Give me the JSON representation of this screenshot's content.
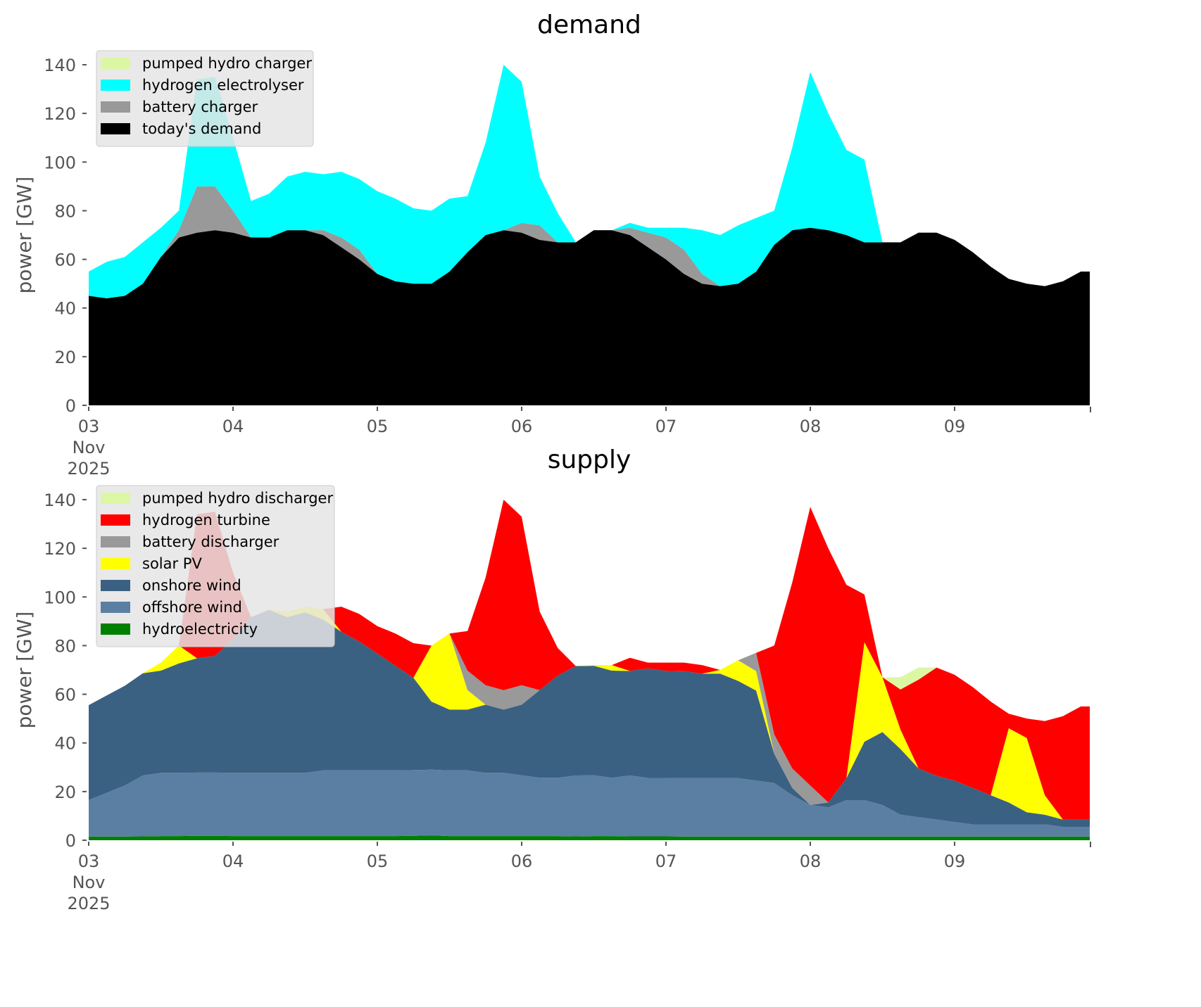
{
  "chart_data": [
    {
      "type": "area",
      "stacked": true,
      "title": "demand",
      "xlabel": "",
      "ylabel": "power [GW]",
      "ylim": [
        0,
        145
      ],
      "yticks": [
        0,
        20,
        40,
        60,
        80,
        100,
        120,
        140
      ],
      "xticks": [
        "03\nNov\n2025",
        "04",
        "05",
        "06",
        "07",
        "08",
        "09"
      ],
      "xtick_lines": [
        [
          "03",
          "Nov",
          "2025"
        ],
        [
          "04"
        ],
        [
          "05"
        ],
        [
          "06"
        ],
        [
          "07"
        ],
        [
          "08"
        ],
        [
          "09"
        ]
      ],
      "x_unit": "days since 03 Nov 2025 00:00",
      "x_step_days": 0.125,
      "x_range_days": [
        0,
        6.94
      ],
      "legend_position": "top-left",
      "grid": false,
      "series": [
        {
          "name": "today's demand",
          "color": "#000000",
          "values": [
            45,
            44,
            45,
            50,
            61,
            69,
            71,
            72,
            71,
            69,
            69,
            72,
            72,
            70,
            65,
            60,
            54,
            51,
            50,
            50,
            55,
            63,
            70,
            72,
            71,
            68,
            67,
            67,
            72,
            72,
            70,
            65,
            60,
            54,
            50,
            49,
            50,
            55,
            66,
            72,
            73,
            72,
            70,
            67,
            67,
            67,
            71,
            71,
            68,
            63,
            57,
            52,
            50,
            49,
            51,
            55
          ]
        },
        {
          "name": "battery charger",
          "color": "#999999",
          "values": [
            0,
            0,
            0,
            0,
            0,
            3,
            19,
            18,
            9,
            0,
            0,
            0,
            0,
            2,
            4,
            4,
            0,
            0,
            0,
            0,
            0,
            0,
            0,
            0,
            4,
            6,
            0,
            0,
            0,
            0,
            3,
            6,
            9,
            10,
            4,
            0,
            0,
            0,
            0,
            0,
            0,
            0,
            0,
            0,
            0,
            0,
            0,
            0,
            0,
            0,
            0,
            0,
            0,
            0,
            0,
            0
          ]
        },
        {
          "name": "hydrogen electrolyser",
          "color": "#00ffff",
          "values": [
            10,
            15,
            16,
            17,
            12,
            8,
            44,
            45,
            30,
            15,
            18,
            22,
            24,
            23,
            27,
            29,
            34,
            34,
            31,
            30,
            30,
            23,
            38,
            68,
            58,
            20,
            12,
            0,
            0,
            0,
            2,
            2,
            4,
            9,
            18,
            21,
            24,
            22,
            14,
            34,
            64,
            48,
            35,
            34,
            0,
            0,
            0,
            0,
            0,
            0,
            0,
            0,
            0,
            0,
            0,
            0
          ]
        },
        {
          "name": "pumped hydro charger",
          "color": "#dcf7a4",
          "values": []
        }
      ]
    },
    {
      "type": "area",
      "stacked": true,
      "title": "supply",
      "xlabel": "",
      "ylabel": "power [GW]",
      "ylim": [
        0,
        145
      ],
      "yticks": [
        0,
        20,
        40,
        60,
        80,
        100,
        120,
        140
      ],
      "xtick_lines": [
        [
          "03",
          "Nov",
          "2025"
        ],
        [
          "04"
        ],
        [
          "05"
        ],
        [
          "06"
        ],
        [
          "07"
        ],
        [
          "08"
        ],
        [
          "09"
        ]
      ],
      "x_unit": "days since 03 Nov 2025 00:00",
      "x_step_days": 0.125,
      "legend_position": "top-left",
      "grid": false,
      "series": [
        {
          "name": "hydroelectricity",
          "color": "#008000"
        },
        {
          "name": "offshore wind",
          "color": "#5b7fa3"
        },
        {
          "name": "onshore wind",
          "color": "#3b6182"
        },
        {
          "name": "solar PV",
          "color": "#ffff00"
        },
        {
          "name": "battery discharger",
          "color": "#999999"
        },
        {
          "name": "hydrogen turbine",
          "color": "#ff0000"
        },
        {
          "name": "pumped hydro discharger",
          "color": "#dcf7a4"
        }
      ],
      "totals_note": "Stacked supply top equals total demand (demand chart top)."
    }
  ],
  "demand_legend": [
    "pumped hydro charger",
    "hydrogen electrolyser",
    "battery charger",
    "today's demand"
  ],
  "supply_legend": [
    "pumped hydro discharger",
    "hydrogen turbine",
    "battery discharger",
    "solar PV",
    "onshore wind",
    "offshore wind",
    "hydroelectricity"
  ],
  "supply_values": {
    "hydroelectricity": [
      1.5,
      1.5,
      1.5,
      1.6,
      1.7,
      1.7,
      1.8,
      1.8,
      1.7,
      1.7,
      1.7,
      1.7,
      1.7,
      1.7,
      1.7,
      1.7,
      1.7,
      1.7,
      1.8,
      2.0,
      1.7,
      1.7,
      1.7,
      1.7,
      1.7,
      1.7,
      1.7,
      1.6,
      1.7,
      1.7,
      1.6,
      1.6,
      1.6,
      1.5,
      1.5,
      1.5,
      1.5,
      1.5,
      1.5,
      1.5,
      1.5,
      1.5,
      1.5,
      1.5,
      1.5,
      1.5,
      1.5,
      1.5,
      1.5,
      1.5,
      1.5,
      1.5,
      1.5,
      1.5,
      1.5,
      1.5
    ],
    "offshore_wind": [
      15,
      18,
      21,
      25,
      26,
      26,
      26,
      26,
      26,
      26,
      26,
      26,
      26,
      27,
      27,
      27,
      27,
      27,
      27,
      27,
      27,
      27,
      26,
      26,
      25,
      24,
      24,
      25,
      25,
      24,
      25,
      24,
      24,
      24,
      24,
      24,
      24,
      23,
      22,
      17,
      13,
      12,
      15,
      15,
      13,
      9,
      8,
      7,
      6,
      5,
      5,
      5,
      5,
      5,
      4,
      4
    ],
    "onshore_wind": [
      39,
      40,
      41,
      42,
      42,
      45,
      47,
      48,
      55,
      64,
      67,
      64,
      66,
      62,
      57,
      53,
      48,
      43,
      38,
      28,
      25,
      25,
      28,
      26,
      29,
      36,
      42,
      45,
      45,
      44,
      43,
      45,
      44,
      44,
      43,
      43,
      40,
      37,
      12,
      3,
      0,
      2,
      9,
      24,
      30,
      27,
      20,
      18,
      17,
      15,
      12,
      9,
      5,
      4,
      3,
      3
    ]
  }
}
